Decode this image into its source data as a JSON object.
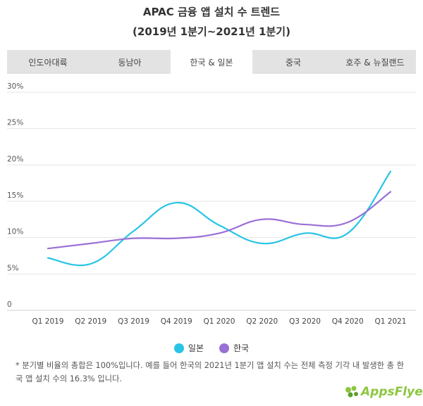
{
  "title_line1": "APAC 금융 앱 설치 수 트렌드",
  "title_line2": "(2019년 1분기~2021년 1분기)",
  "tabs": [
    {
      "label": "인도아대륙",
      "active": false
    },
    {
      "label": "동남아",
      "active": false
    },
    {
      "label": "한국 & 일본",
      "active": true
    },
    {
      "label": "중국",
      "active": false
    },
    {
      "label": "호주 & 뉴질랜드",
      "active": false
    }
  ],
  "chart_data": {
    "type": "line",
    "categories": [
      "Q1 2019",
      "Q2 2019",
      "Q3 2019",
      "Q4 2019",
      "Q1 2020",
      "Q2 2020",
      "Q3 2020",
      "Q4 2020",
      "Q1 2021"
    ],
    "series": [
      {
        "name": "일본",
        "color": "#29c4e6",
        "values": [
          7.2,
          6.4,
          10.9,
          14.8,
          11.7,
          9.2,
          10.6,
          10.6,
          19.1
        ]
      },
      {
        "name": "한국",
        "color": "#9a6fd6",
        "values": [
          8.5,
          9.2,
          9.9,
          9.9,
          10.6,
          12.5,
          11.8,
          12.1,
          16.3
        ]
      }
    ],
    "yticks": [
      "0",
      "5%",
      "10%",
      "15%",
      "20%",
      "25%",
      "30%"
    ],
    "ylim": [
      0,
      30
    ],
    "grid": true,
    "legend_position": "bottom"
  },
  "footnote": "* 분기별 비율의 총합은 100%입니다. 예를 들어 한국의 2021년 1분기 앱 설치 수는 전체 측정 기각 내 발생한 총 한국 앱 설치 수의 16.3% 입니다.",
  "logo_text": "AppsFlyer"
}
